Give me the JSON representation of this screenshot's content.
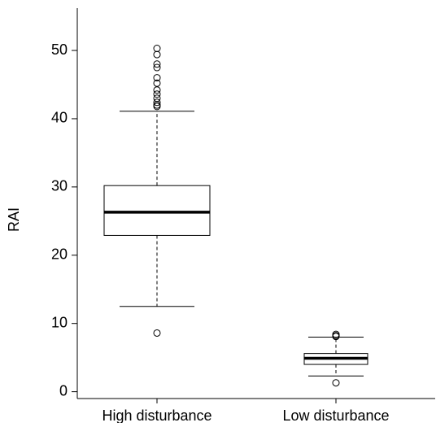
{
  "chart_data": {
    "type": "box",
    "ylabel": "RAI",
    "categories": [
      "High disturbance",
      "Low disturbance"
    ],
    "boxes": [
      {
        "min": 12.5,
        "q1": 22.9,
        "median": 26.3,
        "q3": 30.2,
        "max": 41.1,
        "outliers": [
          8.6,
          41.8,
          42.0,
          42.4,
          43.0,
          43.6,
          44.2,
          45.2,
          46.0,
          47.5,
          48.0,
          49.4,
          50.3
        ]
      },
      {
        "min": 2.3,
        "q1": 4.0,
        "median": 4.9,
        "q3": 5.6,
        "max": 8.0,
        "outliers": [
          1.3,
          8.1,
          8.2,
          8.4
        ]
      }
    ],
    "color": "#000000",
    "ylim": [
      -1,
      56.2
    ],
    "yticks": [
      0,
      10,
      20,
      30,
      40,
      50
    ]
  }
}
